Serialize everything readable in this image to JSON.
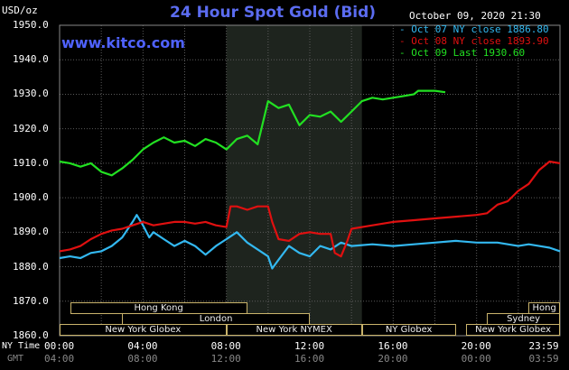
{
  "header": {
    "title": "24 Hour Spot Gold (Bid)",
    "website": "www.kitco.com",
    "unit_label": "USD/oz",
    "timestamp": "October 09, 2020 21:30"
  },
  "colors": {
    "background": "#000000",
    "grid": "#5a5a5a",
    "oct07": "#33b8f0",
    "oct08": "#e01010",
    "oct09": "#22e022",
    "nymex_shade": "#1e241e",
    "market_box_border": "#c9b36b"
  },
  "legend": [
    {
      "label": "Oct 07 NY close 1886.80",
      "color": "#33b8f0"
    },
    {
      "label": "Oct 08 NY close 1893.90",
      "color": "#e01010"
    },
    {
      "label": "Oct 09 Last 1930.60",
      "color": "#22e022"
    }
  ],
  "axis_labels": {
    "ny_time": "NY Time",
    "gmt": "GMT"
  },
  "markets": [
    {
      "name": "Hong Kong",
      "start": 0.5,
      "end": 9.0
    },
    {
      "name": "Hong Kong",
      "start": 22.5,
      "end": 24.0
    },
    {
      "name": "London",
      "start": 3.0,
      "end": 12.0
    },
    {
      "name": "Sydney",
      "start": 20.5,
      "end": 24.0
    },
    {
      "name": "New York Globex",
      "start": 0.0,
      "end": 8.0
    },
    {
      "name": "New York NYMEX",
      "start": 8.0,
      "end": 14.5
    },
    {
      "name": "NY Globex",
      "start": 14.5,
      "end": 19.0
    },
    {
      "name": "New York Globex",
      "start": 19.5,
      "end": 24.0
    }
  ],
  "chart_data": {
    "type": "line",
    "title": "24 Hour Spot Gold (Bid)",
    "ylabel": "USD/oz",
    "ylim": [
      1860,
      1950
    ],
    "xlim": [
      0,
      24
    ],
    "y_ticks": [
      "1950.0",
      "1940.0",
      "1930.0",
      "1920.0",
      "1910.0",
      "1900.0",
      "1890.0",
      "1880.0",
      "1870.0",
      "1860.0"
    ],
    "x_ticks_ny": [
      "00:00",
      "04:00",
      "08:00",
      "12:00",
      "16:00",
      "20:00",
      "23:59"
    ],
    "x_ticks_gmt": [
      "04:00",
      "08:00",
      "12:00",
      "16:00",
      "20:00",
      "00:00",
      "03:59"
    ],
    "grid": true,
    "shaded_session": [
      8.0,
      14.5
    ],
    "legend_position": "top-right",
    "series": [
      {
        "name": "Oct 07 NY close 1886.80",
        "color": "#33b8f0",
        "x": [
          0,
          0.5,
          1,
          1.5,
          2,
          2.5,
          3,
          3.5,
          3.7,
          4,
          4.3,
          4.5,
          5,
          5.5,
          6,
          6.5,
          7,
          7.5,
          8,
          8.5,
          9,
          9.5,
          10,
          10.2,
          10.5,
          11,
          11.5,
          12,
          12.5,
          13,
          13.5,
          14,
          15,
          16,
          17,
          18,
          19,
          20,
          21,
          22,
          22.5,
          23,
          23.5,
          24
        ],
        "y": [
          1882.5,
          1883,
          1882.5,
          1884,
          1884.5,
          1886,
          1888.5,
          1893,
          1895,
          1892,
          1888.5,
          1890,
          1888,
          1886,
          1887.5,
          1886,
          1883.5,
          1886,
          1888,
          1890,
          1887,
          1885,
          1883,
          1879.5,
          1882,
          1886,
          1884,
          1883,
          1886,
          1885,
          1887,
          1886,
          1886.5,
          1886,
          1886.5,
          1887,
          1887.5,
          1887,
          1887,
          1886,
          1886.5,
          1886,
          1885.5,
          1884.5
        ]
      },
      {
        "name": "Oct 08 NY close 1893.90",
        "color": "#e01010",
        "x": [
          0,
          0.5,
          1,
          1.5,
          2,
          2.5,
          3,
          3.5,
          4,
          4.5,
          5,
          5.5,
          6,
          6.5,
          7,
          7.5,
          8,
          8.2,
          8.5,
          9,
          9.5,
          10,
          10.2,
          10.5,
          11,
          11.5,
          12,
          12.5,
          13,
          13.2,
          13.5,
          13.8,
          14,
          15,
          16,
          17,
          18,
          19,
          20,
          20.5,
          21,
          21.5,
          22,
          22.5,
          23,
          23.5,
          24
        ],
        "y": [
          1884.5,
          1885,
          1886,
          1888,
          1889.5,
          1890.5,
          1891,
          1892,
          1893,
          1892,
          1892.5,
          1893,
          1893,
          1892.5,
          1893,
          1892,
          1891.5,
          1897.5,
          1897.5,
          1896.5,
          1897.5,
          1897.5,
          1893,
          1888,
          1887.5,
          1889.5,
          1890,
          1889.5,
          1889.5,
          1884,
          1883,
          1887.5,
          1891,
          1892,
          1893,
          1893.5,
          1894,
          1894.5,
          1895,
          1895.5,
          1898,
          1899,
          1902,
          1904,
          1908,
          1910.5,
          1910
        ]
      },
      {
        "name": "Oct 09 Last 1930.60",
        "color": "#22e022",
        "x": [
          0,
          0.5,
          1,
          1.5,
          2,
          2.5,
          3,
          3.5,
          4,
          4.5,
          5,
          5.5,
          6,
          6.5,
          7,
          7.5,
          8,
          8.5,
          9,
          9.5,
          10,
          10.5,
          11,
          11.5,
          12,
          12.5,
          13,
          13.5,
          14,
          14.5,
          15,
          15.5,
          16,
          16.5,
          17,
          17.2,
          17.5,
          18,
          18.5
        ],
        "y": [
          1910.5,
          1910,
          1909,
          1910,
          1907.5,
          1906.5,
          1908.5,
          1911,
          1914,
          1916,
          1917.5,
          1916,
          1916.5,
          1915,
          1917,
          1916,
          1914,
          1917,
          1918,
          1915.5,
          1928,
          1926,
          1927,
          1921,
          1924,
          1923.5,
          1925,
          1922,
          1925,
          1928,
          1929,
          1928.5,
          1929,
          1929.5,
          1930,
          1931,
          1931,
          1931,
          1930.6
        ]
      }
    ]
  }
}
